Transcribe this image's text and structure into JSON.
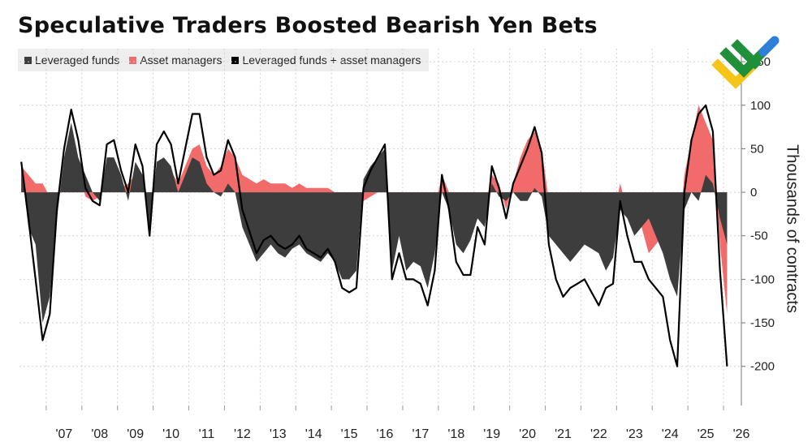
{
  "title": "Speculative Traders Boosted Bearish Yen Bets",
  "legend": [
    {
      "label": "Leveraged funds",
      "color": "#3d3d3d"
    },
    {
      "label": "Asset managers",
      "color": "#f26b6b"
    },
    {
      "label": "Leveraged funds + asset managers",
      "color": "#000000"
    }
  ],
  "colors": {
    "leveraged": "#3d3d3d",
    "asset": "#f26b6b",
    "combined": "#000000",
    "grid": "#d2d2d2"
  },
  "chart_data": {
    "type": "area",
    "title": "Speculative Traders Boosted Bearish Yen Bets",
    "ylabel": "Thousands of contracts",
    "xlabel": "",
    "ylim": [
      -245,
      165
    ],
    "xlim": [
      2006.25,
      2026.5
    ],
    "yticks": [
      150,
      100,
      50,
      0,
      -50,
      -100,
      -150,
      -200
    ],
    "xticks": [
      "'07",
      "'08",
      "'09",
      "'10",
      "'11",
      "'12",
      "'13",
      "'14",
      "'15",
      "'16",
      "'17",
      "'18",
      "'19",
      "'20",
      "'21",
      "'22",
      "'23",
      "'24",
      "'25",
      "'26"
    ],
    "x": [
      2006.3,
      2006.5,
      2006.7,
      2006.9,
      2007.1,
      2007.3,
      2007.5,
      2007.7,
      2007.9,
      2008.1,
      2008.3,
      2008.5,
      2008.7,
      2008.9,
      2009.1,
      2009.3,
      2009.5,
      2009.7,
      2009.9,
      2010.1,
      2010.3,
      2010.5,
      2010.7,
      2010.9,
      2011.1,
      2011.3,
      2011.5,
      2011.7,
      2011.9,
      2012.1,
      2012.3,
      2012.5,
      2012.7,
      2012.9,
      2013.1,
      2013.3,
      2013.5,
      2013.7,
      2013.9,
      2014.1,
      2014.3,
      2014.5,
      2014.7,
      2014.9,
      2015.1,
      2015.3,
      2015.5,
      2015.7,
      2015.9,
      2016.1,
      2016.3,
      2016.5,
      2016.7,
      2016.9,
      2017.1,
      2017.3,
      2017.5,
      2017.7,
      2017.9,
      2018.1,
      2018.3,
      2018.5,
      2018.7,
      2018.9,
      2019.1,
      2019.3,
      2019.5,
      2019.7,
      2019.9,
      2020.1,
      2020.3,
      2020.5,
      2020.7,
      2020.9,
      2021.1,
      2021.3,
      2021.5,
      2021.7,
      2021.9,
      2022.1,
      2022.3,
      2022.5,
      2022.7,
      2022.9,
      2023.1,
      2023.3,
      2023.5,
      2023.7,
      2023.9,
      2024.1,
      2024.3,
      2024.5,
      2024.7,
      2024.9,
      2025.1,
      2025.3,
      2025.5,
      2025.7,
      2025.9,
      2026.1
    ],
    "series": [
      {
        "name": "Leveraged funds",
        "values": [
          30,
          -40,
          -60,
          -150,
          -120,
          -30,
          40,
          80,
          40,
          20,
          0,
          -10,
          40,
          40,
          20,
          -10,
          35,
          20,
          -40,
          35,
          40,
          30,
          0,
          20,
          40,
          35,
          10,
          0,
          -5,
          10,
          0,
          -40,
          -60,
          -80,
          -70,
          -60,
          -70,
          -75,
          -65,
          -60,
          -70,
          -75,
          -80,
          -70,
          -80,
          -100,
          -100,
          -90,
          15,
          30,
          40,
          50,
          -90,
          -50,
          -90,
          -80,
          -85,
          -110,
          -70,
          0,
          -20,
          -60,
          -70,
          -55,
          -30,
          -40,
          10,
          -5,
          -10,
          0,
          -10,
          -10,
          5,
          -5,
          -50,
          -60,
          -70,
          -80,
          -70,
          -60,
          -65,
          -70,
          -90,
          -75,
          -20,
          -30,
          -50,
          -40,
          -30,
          -50,
          -70,
          -100,
          -120,
          -20,
          0,
          -10,
          20,
          10,
          -30,
          -60
        ]
      },
      {
        "name": "Asset managers",
        "values": [
          30,
          20,
          10,
          10,
          -5,
          -10,
          10,
          20,
          25,
          -5,
          -10,
          -5,
          15,
          20,
          5,
          10,
          20,
          10,
          -10,
          20,
          30,
          25,
          10,
          30,
          50,
          55,
          30,
          20,
          30,
          50,
          40,
          20,
          15,
          10,
          15,
          10,
          10,
          10,
          5,
          10,
          5,
          5,
          5,
          5,
          0,
          -10,
          -15,
          -20,
          -10,
          -5,
          0,
          5,
          -10,
          -20,
          -10,
          -20,
          -20,
          -20,
          -20,
          20,
          0,
          -20,
          -25,
          -40,
          -10,
          -20,
          20,
          10,
          -20,
          10,
          40,
          60,
          70,
          50,
          -10,
          -40,
          -50,
          -30,
          -35,
          -40,
          -50,
          -60,
          -20,
          -30,
          10,
          -20,
          -30,
          -40,
          -70,
          -60,
          -50,
          -70,
          -80,
          20,
          60,
          100,
          80,
          60,
          -60,
          -140
        ]
      },
      {
        "name": "Leveraged funds + asset managers",
        "values": [
          35,
          -30,
          -100,
          -170,
          -140,
          -20,
          50,
          95,
          60,
          5,
          -10,
          -15,
          55,
          60,
          25,
          0,
          55,
          30,
          -50,
          55,
          70,
          55,
          10,
          50,
          90,
          90,
          40,
          20,
          25,
          60,
          40,
          -20,
          -45,
          -70,
          -55,
          -50,
          -60,
          -65,
          -60,
          -50,
          -65,
          -70,
          -75,
          -65,
          -80,
          -110,
          -115,
          -110,
          5,
          25,
          40,
          55,
          -100,
          -70,
          -100,
          -100,
          -105,
          -130,
          -90,
          20,
          -20,
          -80,
          -95,
          -95,
          -40,
          -60,
          30,
          5,
          -30,
          10,
          30,
          50,
          75,
          45,
          -60,
          -100,
          -120,
          -110,
          -105,
          -100,
          -115,
          -130,
          -110,
          -105,
          -10,
          -50,
          -80,
          -80,
          -100,
          -110,
          -120,
          -170,
          -200,
          0,
          60,
          90,
          100,
          70,
          -90,
          -200
        ]
      }
    ]
  }
}
